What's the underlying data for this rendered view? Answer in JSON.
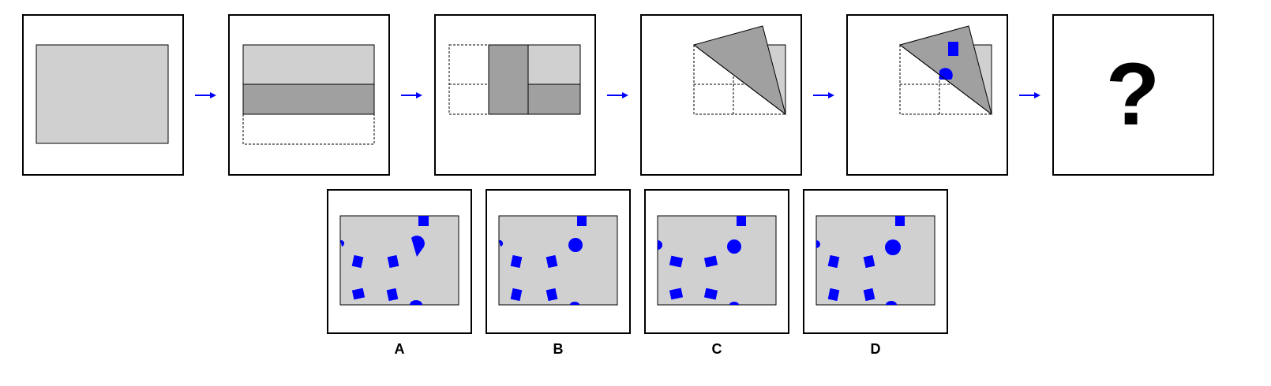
{
  "colors": {
    "paper": "#d0d0d0",
    "fold": "#a0a0a0",
    "hole": "#0000ff",
    "arrow": "#0000ff",
    "frame": "#000000"
  },
  "icons": {
    "arrow": "right-arrow-icon"
  },
  "sequence": {
    "steps": [
      {
        "name": "step-1-unfolded-paper"
      },
      {
        "name": "step-2-fold-up"
      },
      {
        "name": "step-3-fold-left"
      },
      {
        "name": "step-4-diagonal-fold"
      },
      {
        "name": "step-5-punch-holes"
      },
      {
        "name": "step-6-question"
      }
    ],
    "question_mark": "?"
  },
  "options": [
    {
      "label": "A"
    },
    {
      "label": "B"
    },
    {
      "label": "C"
    },
    {
      "label": "D"
    }
  ]
}
